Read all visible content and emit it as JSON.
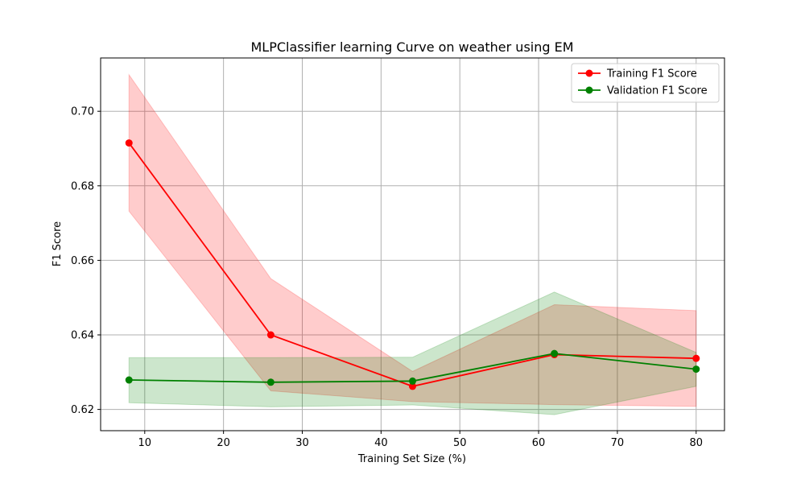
{
  "chart_data": {
    "type": "line",
    "title": "MLPClassifier learning Curve on weather using EM",
    "xlabel": "Training Set Size (%)",
    "ylabel": "F1 Score",
    "xlim": [
      4.4,
      83.6
    ],
    "ylim": [
      0.6143,
      0.7143
    ],
    "xticks": [
      10,
      20,
      30,
      40,
      50,
      60,
      70,
      80
    ],
    "yticks": [
      0.62,
      0.64,
      0.66,
      0.68,
      0.7
    ],
    "xtick_labels": [
      "10",
      "20",
      "30",
      "40",
      "50",
      "60",
      "70",
      "80"
    ],
    "ytick_labels": [
      "0.62",
      "0.64",
      "0.66",
      "0.68",
      "0.70"
    ],
    "grid": true,
    "legend_position": "upper right",
    "x": [
      8,
      26,
      44,
      62,
      80
    ],
    "series": [
      {
        "name": "Training F1 Score",
        "color": "#ff0000",
        "band_color": "#ff0000",
        "values": [
          0.6915,
          0.64,
          0.6262,
          0.6347,
          0.6337
        ],
        "lower": [
          0.6732,
          0.625,
          0.6221,
          0.6213,
          0.6208
        ],
        "upper": [
          0.7098,
          0.6551,
          0.6302,
          0.6481,
          0.6465
        ]
      },
      {
        "name": "Validation F1 Score",
        "color": "#008000",
        "band_color": "#008000",
        "values": [
          0.6279,
          0.6273,
          0.6276,
          0.635,
          0.6308
        ],
        "lower": [
          0.6218,
          0.6207,
          0.6212,
          0.6186,
          0.6262
        ],
        "upper": [
          0.6339,
          0.6339,
          0.634,
          0.6515,
          0.6353
        ]
      }
    ]
  }
}
